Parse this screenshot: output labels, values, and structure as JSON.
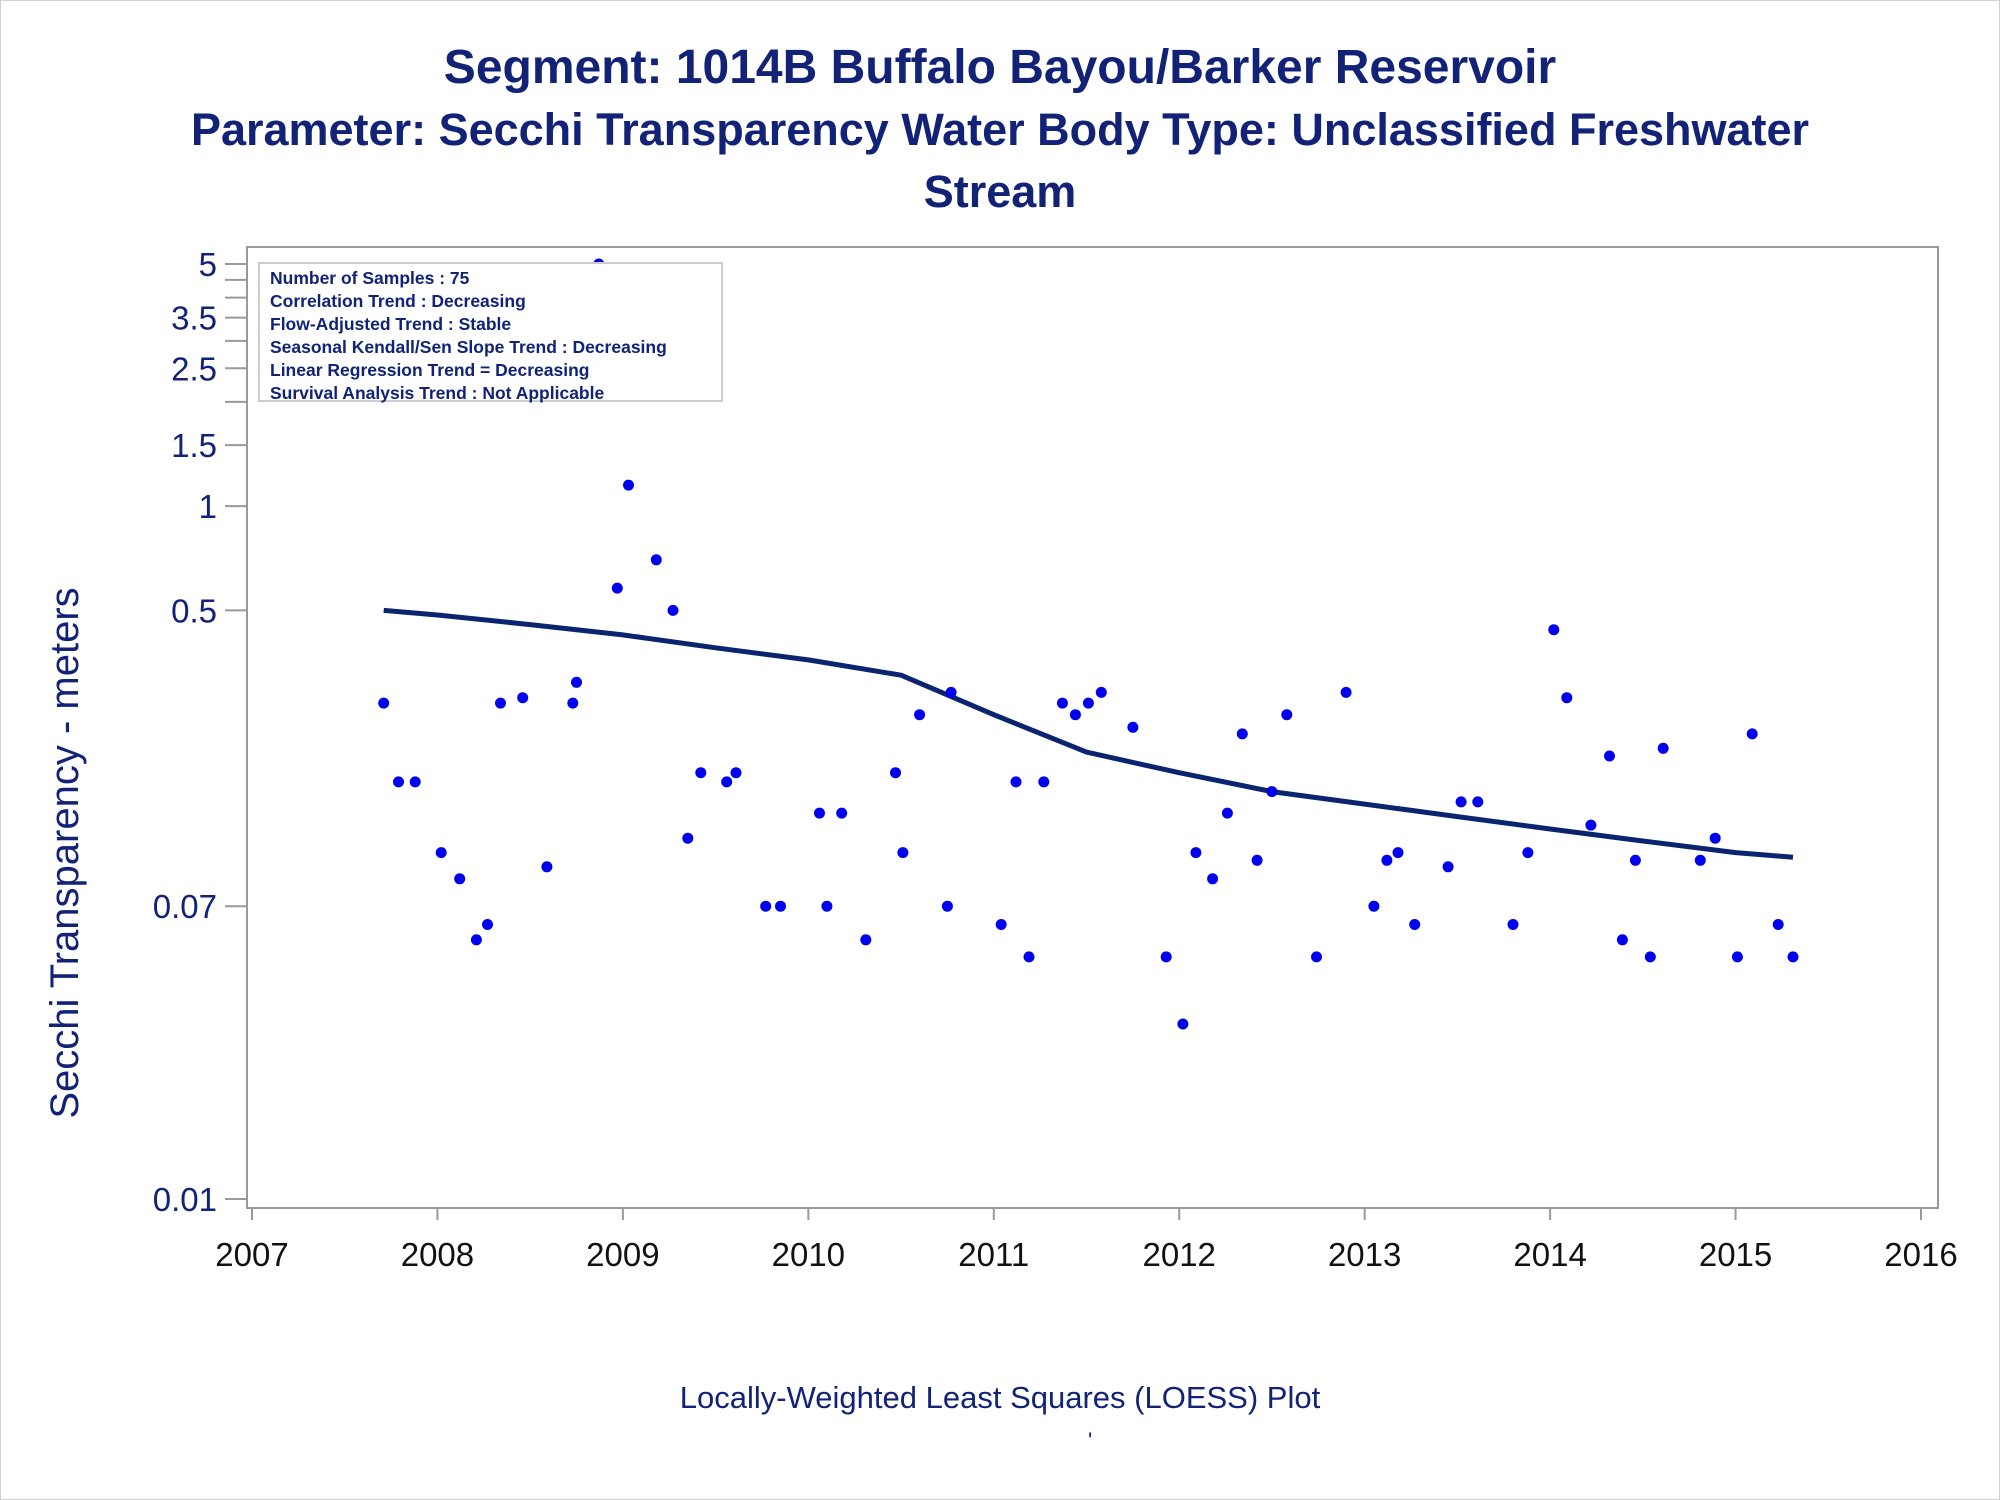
{
  "title": {
    "line1": "Segment: 1014B  Buffalo Bayou/Barker Reservoir",
    "line2": "Parameter: Secchi Transparency   Water Body Type: Unclassified Freshwater",
    "line3": "Stream"
  },
  "stats": [
    "Number of Samples : 75",
    "Correlation Trend : Decreasing",
    "Flow-Adjusted Trend : Stable",
    "Seasonal Kendall/Sen Slope Trend : Decreasing",
    "Linear Regression Trend = Decreasing",
    "Survival Analysis Trend : Not Applicable"
  ],
  "footnote": "Locally-Weighted Least Squares (LOESS) Plot",
  "footmark": "'",
  "colors": {
    "text": "#112277",
    "points": "#0000ee",
    "line": "#0a2470",
    "axis": "#999999"
  },
  "chart_data": {
    "type": "scatter",
    "scale_y": "log",
    "grid": false,
    "ylabel": "Secchi Transparency - meters",
    "xlabel": "",
    "xlim": [
      2007,
      2016
    ],
    "ylim": [
      0.009,
      6
    ],
    "x_ticks": [
      2007,
      2008,
      2009,
      2010,
      2011,
      2012,
      2013,
      2014,
      2015,
      2016
    ],
    "x_tick_labels": [
      "2007",
      "2008",
      "2009",
      "2010",
      "2011",
      "2012",
      "2013",
      "2014",
      "2015",
      "2016"
    ],
    "y_ticks": [
      0.01,
      0.07,
      0.5,
      1,
      1.5,
      2,
      2.5,
      3,
      3.5,
      4,
      4.5,
      5
    ],
    "y_tick_labels": [
      {
        "value": 0.01,
        "label": "0.01"
      },
      {
        "value": 0.07,
        "label": "0.07"
      },
      {
        "value": 0.5,
        "label": "0.5"
      },
      {
        "value": 1,
        "label": "1"
      },
      {
        "value": 1.5,
        "label": "1.5"
      },
      {
        "value": 2.5,
        "label": "2.5"
      },
      {
        "value": 3.5,
        "label": "3.5"
      },
      {
        "value": 5,
        "label": "5"
      }
    ],
    "series": [
      {
        "type": "scatter",
        "points": [
          [
            2007.71,
            0.27
          ],
          [
            2007.79,
            0.16
          ],
          [
            2007.88,
            0.16
          ],
          [
            2008.02,
            0.1
          ],
          [
            2008.12,
            0.084
          ],
          [
            2008.21,
            0.056
          ],
          [
            2008.27,
            0.062
          ],
          [
            2008.34,
            0.27
          ],
          [
            2008.46,
            0.28
          ],
          [
            2008.59,
            0.091
          ],
          [
            2008.73,
            0.27
          ],
          [
            2008.75,
            0.31
          ],
          [
            2008.87,
            5.0
          ],
          [
            2008.97,
            0.58
          ],
          [
            2009.03,
            1.15
          ],
          [
            2009.18,
            0.7
          ],
          [
            2009.27,
            0.5
          ],
          [
            2009.35,
            0.11
          ],
          [
            2009.42,
            0.17
          ],
          [
            2009.56,
            0.16
          ],
          [
            2009.61,
            0.17
          ],
          [
            2009.77,
            0.07
          ],
          [
            2009.85,
            0.07
          ],
          [
            2010.06,
            0.13
          ],
          [
            2010.1,
            0.07
          ],
          [
            2010.18,
            0.13
          ],
          [
            2010.31,
            0.056
          ],
          [
            2010.47,
            0.17
          ],
          [
            2010.51,
            0.1
          ],
          [
            2010.6,
            0.25
          ],
          [
            2010.75,
            0.07
          ],
          [
            2010.77,
            0.29
          ],
          [
            2011.04,
            0.062
          ],
          [
            2011.12,
            0.16
          ],
          [
            2011.19,
            0.05
          ],
          [
            2011.27,
            0.16
          ],
          [
            2011.37,
            0.27
          ],
          [
            2011.44,
            0.25
          ],
          [
            2011.51,
            0.27
          ],
          [
            2011.58,
            0.29
          ],
          [
            2011.75,
            0.23
          ],
          [
            2011.93,
            0.05
          ],
          [
            2012.02,
            0.032
          ],
          [
            2012.09,
            0.1
          ],
          [
            2012.18,
            0.084
          ],
          [
            2012.26,
            0.13
          ],
          [
            2012.34,
            0.22
          ],
          [
            2012.42,
            0.095
          ],
          [
            2012.5,
            0.15
          ],
          [
            2012.58,
            0.25
          ],
          [
            2012.74,
            0.05
          ],
          [
            2012.9,
            0.29
          ],
          [
            2013.05,
            0.07
          ],
          [
            2013.12,
            0.095
          ],
          [
            2013.18,
            0.1
          ],
          [
            2013.27,
            0.062
          ],
          [
            2013.45,
            0.091
          ],
          [
            2013.52,
            0.14
          ],
          [
            2013.61,
            0.14
          ],
          [
            2013.8,
            0.062
          ],
          [
            2013.88,
            0.1
          ],
          [
            2014.02,
            0.44
          ],
          [
            2014.09,
            0.28
          ],
          [
            2014.22,
            0.12
          ],
          [
            2014.32,
            0.19
          ],
          [
            2014.39,
            0.056
          ],
          [
            2014.46,
            0.095
          ],
          [
            2014.54,
            0.05
          ],
          [
            2014.61,
            0.2
          ],
          [
            2014.81,
            0.095
          ],
          [
            2014.89,
            0.11
          ],
          [
            2015.01,
            0.05
          ],
          [
            2015.09,
            0.22
          ],
          [
            2015.23,
            0.062
          ],
          [
            2015.31,
            0.05
          ]
        ]
      },
      {
        "type": "line",
        "points": [
          [
            2007.71,
            0.5
          ],
          [
            2008.0,
            0.485
          ],
          [
            2008.5,
            0.455
          ],
          [
            2009.0,
            0.425
          ],
          [
            2009.5,
            0.39
          ],
          [
            2010.0,
            0.36
          ],
          [
            2010.5,
            0.325
          ],
          [
            2011.0,
            0.25
          ],
          [
            2011.5,
            0.195
          ],
          [
            2012.0,
            0.17
          ],
          [
            2012.5,
            0.15
          ],
          [
            2013.0,
            0.138
          ],
          [
            2013.5,
            0.127
          ],
          [
            2014.0,
            0.117
          ],
          [
            2014.5,
            0.108
          ],
          [
            2015.0,
            0.1
          ],
          [
            2015.31,
            0.097
          ]
        ]
      }
    ]
  }
}
